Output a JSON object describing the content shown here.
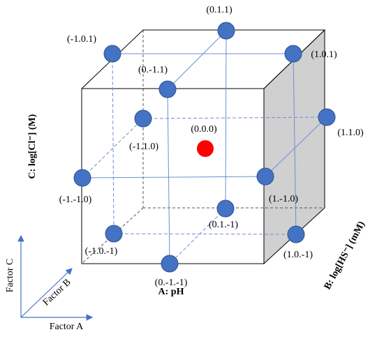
{
  "axes": {
    "a": "A: pH",
    "b": "B: log[HS⁻] (mM)",
    "c": "C: log[Cl⁻] (M)"
  },
  "legend": {
    "factor_a": "Factor A",
    "factor_b": "Factor B",
    "factor_c": "Factor C"
  },
  "nodes": [
    {
      "label": "(0.1.1)"
    },
    {
      "label": "(-1.0.1)"
    },
    {
      "label": "(1.0.1)"
    },
    {
      "label": "(0.-1.1)"
    },
    {
      "label": "(-1.1.0)"
    },
    {
      "label": "(1.1.0)"
    },
    {
      "label": "(0.0.0)"
    },
    {
      "label": "(-1.-1.0)"
    },
    {
      "label": "(1.-1.0)"
    },
    {
      "label": "(0.1.-1)"
    },
    {
      "label": "(-1.0.-1)"
    },
    {
      "label": "(1.0.-1)"
    },
    {
      "label": "(0.-1.-1)"
    }
  ]
}
